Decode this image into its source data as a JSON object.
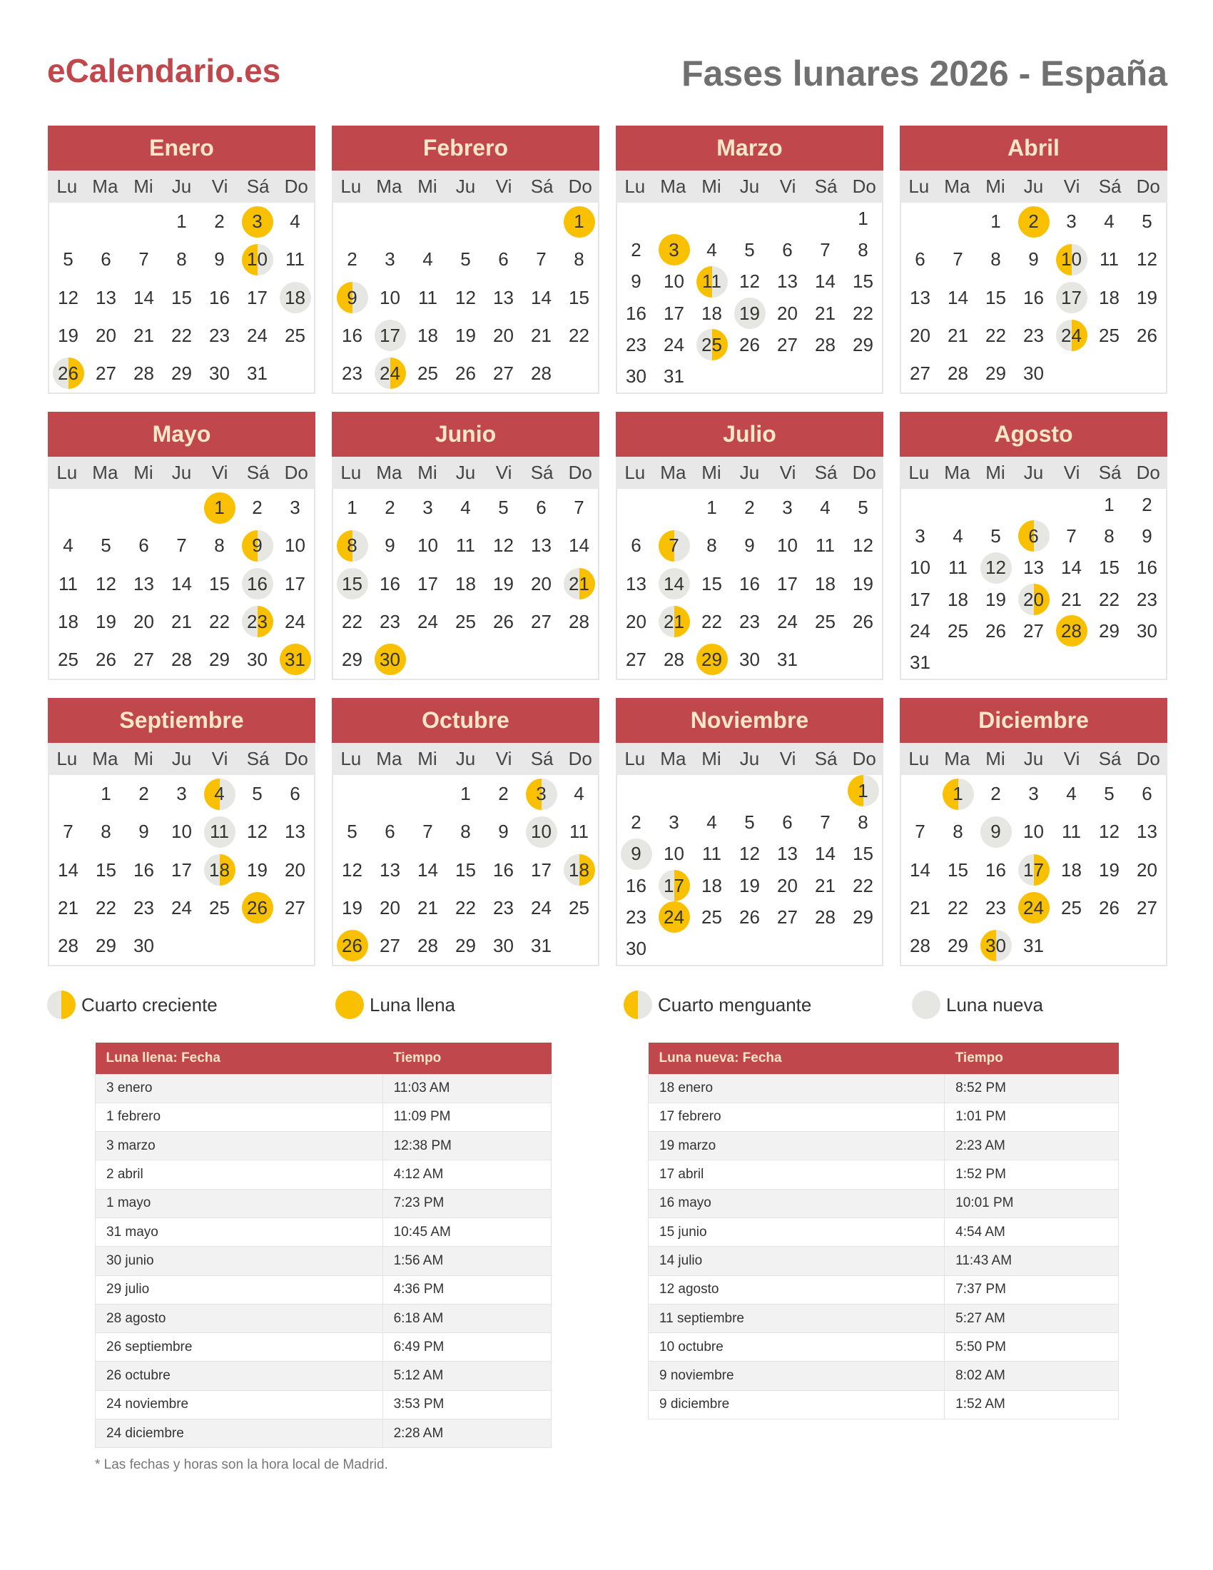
{
  "header": {
    "logo": "eCalendario.es",
    "title": "Fases lunares 2026 - España"
  },
  "year": 2026,
  "weekdays": [
    "Lu",
    "Ma",
    "Mi",
    "Ju",
    "Vi",
    "Sá",
    "Do"
  ],
  "colors": {
    "accent": "#c0474c",
    "full": "#f9c000",
    "new": "#e6e6e3"
  },
  "months": [
    {
      "name": "Enero",
      "full": [
        3
      ],
      "last": [
        10
      ],
      "new": [
        18
      ],
      "first": [
        26
      ]
    },
    {
      "name": "Febrero",
      "full": [
        1
      ],
      "last": [
        9
      ],
      "new": [
        17
      ],
      "first": [
        24
      ]
    },
    {
      "name": "Marzo",
      "full": [
        3
      ],
      "last": [
        11
      ],
      "new": [
        19
      ],
      "first": [
        25
      ]
    },
    {
      "name": "Abril",
      "full": [
        2
      ],
      "last": [
        10
      ],
      "new": [
        17
      ],
      "first": [
        24
      ]
    },
    {
      "name": "Mayo",
      "full": [
        1,
        31
      ],
      "last": [
        9
      ],
      "new": [
        16
      ],
      "first": [
        23
      ]
    },
    {
      "name": "Junio",
      "full": [
        30
      ],
      "last": [
        8
      ],
      "new": [
        15
      ],
      "first": [
        21
      ]
    },
    {
      "name": "Julio",
      "full": [
        29
      ],
      "last": [
        7
      ],
      "new": [
        14
      ],
      "first": [
        21
      ]
    },
    {
      "name": "Agosto",
      "full": [
        28
      ],
      "last": [
        6
      ],
      "new": [
        12
      ],
      "first": [
        20
      ]
    },
    {
      "name": "Septiembre",
      "full": [
        26
      ],
      "last": [
        4
      ],
      "new": [
        11
      ],
      "first": [
        18
      ]
    },
    {
      "name": "Octubre",
      "full": [
        26
      ],
      "last": [
        3
      ],
      "new": [
        10
      ],
      "first": [
        18
      ]
    },
    {
      "name": "Noviembre",
      "full": [
        24
      ],
      "last": [
        1
      ],
      "new": [
        9
      ],
      "first": [
        17
      ]
    },
    {
      "name": "Diciembre",
      "full": [
        24
      ],
      "last": [
        1,
        30
      ],
      "new": [
        9
      ],
      "first": [
        17
      ]
    }
  ],
  "legend": {
    "first": "Cuarto creciente",
    "full": "Luna llena",
    "last": "Cuarto menguante",
    "new": "Luna nueva"
  },
  "full_table": {
    "headers": [
      "Luna llena: Fecha",
      "Tiempo"
    ],
    "rows": [
      [
        "3 enero",
        "11:03 AM"
      ],
      [
        "1 febrero",
        "11:09 PM"
      ],
      [
        "3 marzo",
        "12:38 PM"
      ],
      [
        "2 abril",
        "4:12 AM"
      ],
      [
        "1 mayo",
        "7:23 PM"
      ],
      [
        "31 mayo",
        "10:45 AM"
      ],
      [
        "30 junio",
        "1:56 AM"
      ],
      [
        "29 julio",
        "4:36 PM"
      ],
      [
        "28 agosto",
        "6:18 AM"
      ],
      [
        "26 septiembre",
        "6:49 PM"
      ],
      [
        "26 octubre",
        "5:12 AM"
      ],
      [
        "24 noviembre",
        "3:53 PM"
      ],
      [
        "24 diciembre",
        "2:28 AM"
      ]
    ]
  },
  "new_table": {
    "headers": [
      "Luna nueva: Fecha",
      "Tiempo"
    ],
    "rows": [
      [
        "18 enero",
        "8:52 PM"
      ],
      [
        "17 febrero",
        "1:01 PM"
      ],
      [
        "19 marzo",
        "2:23 AM"
      ],
      [
        "17 abril",
        "1:52 PM"
      ],
      [
        "16 mayo",
        "10:01 PM"
      ],
      [
        "15 junio",
        "4:54 AM"
      ],
      [
        "14 julio",
        "11:43 AM"
      ],
      [
        "12 agosto",
        "7:37 PM"
      ],
      [
        "11 septiembre",
        "5:27 AM"
      ],
      [
        "10 octubre",
        "5:50 PM"
      ],
      [
        "9 noviembre",
        "8:02 AM"
      ],
      [
        "9 diciembre",
        "1:52 AM"
      ]
    ]
  },
  "footnote": "* Las fechas y horas son la hora local de Madrid."
}
